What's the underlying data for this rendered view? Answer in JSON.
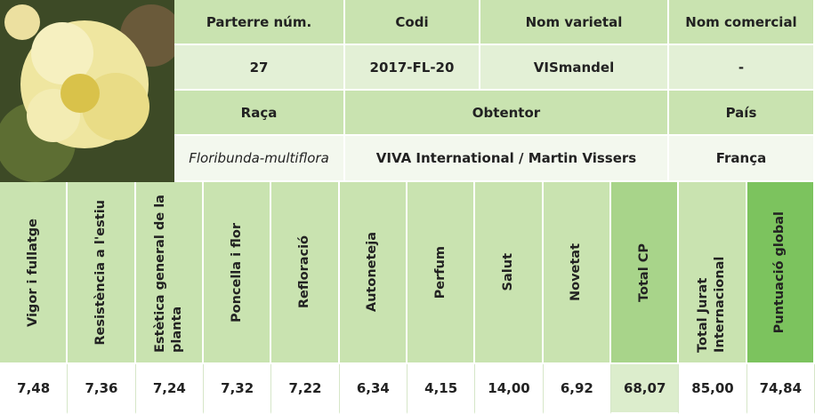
{
  "variety": {
    "labels": [
      "Parterre núm.",
      "Codi",
      "Nom varietal",
      "Nom comercial"
    ],
    "values": [
      "27",
      "2017-FL-20",
      "VISmandel",
      "-"
    ]
  },
  "origin": {
    "labels": [
      "Raça",
      "Obtentor",
      "País"
    ],
    "values": [
      "Floribunda-multiflora",
      "VIVA International / Martin Vissers",
      "França"
    ]
  },
  "scores": {
    "columns": [
      "Vigor i fullatge",
      "Resistència a l'estiu",
      "Estètica general de la planta",
      "Poncella i flor",
      "Refloració",
      "Autoneteja",
      "Perfum",
      "Salut",
      "Novetat",
      "Total CP",
      "Total Jurat Internacional",
      "Puntuació global"
    ],
    "values": [
      "7,48",
      "7,36",
      "7,24",
      "7,32",
      "7,22",
      "6,34",
      "4,15",
      "14,00",
      "6,92",
      "68,07",
      "85,00",
      "74,84"
    ]
  }
}
